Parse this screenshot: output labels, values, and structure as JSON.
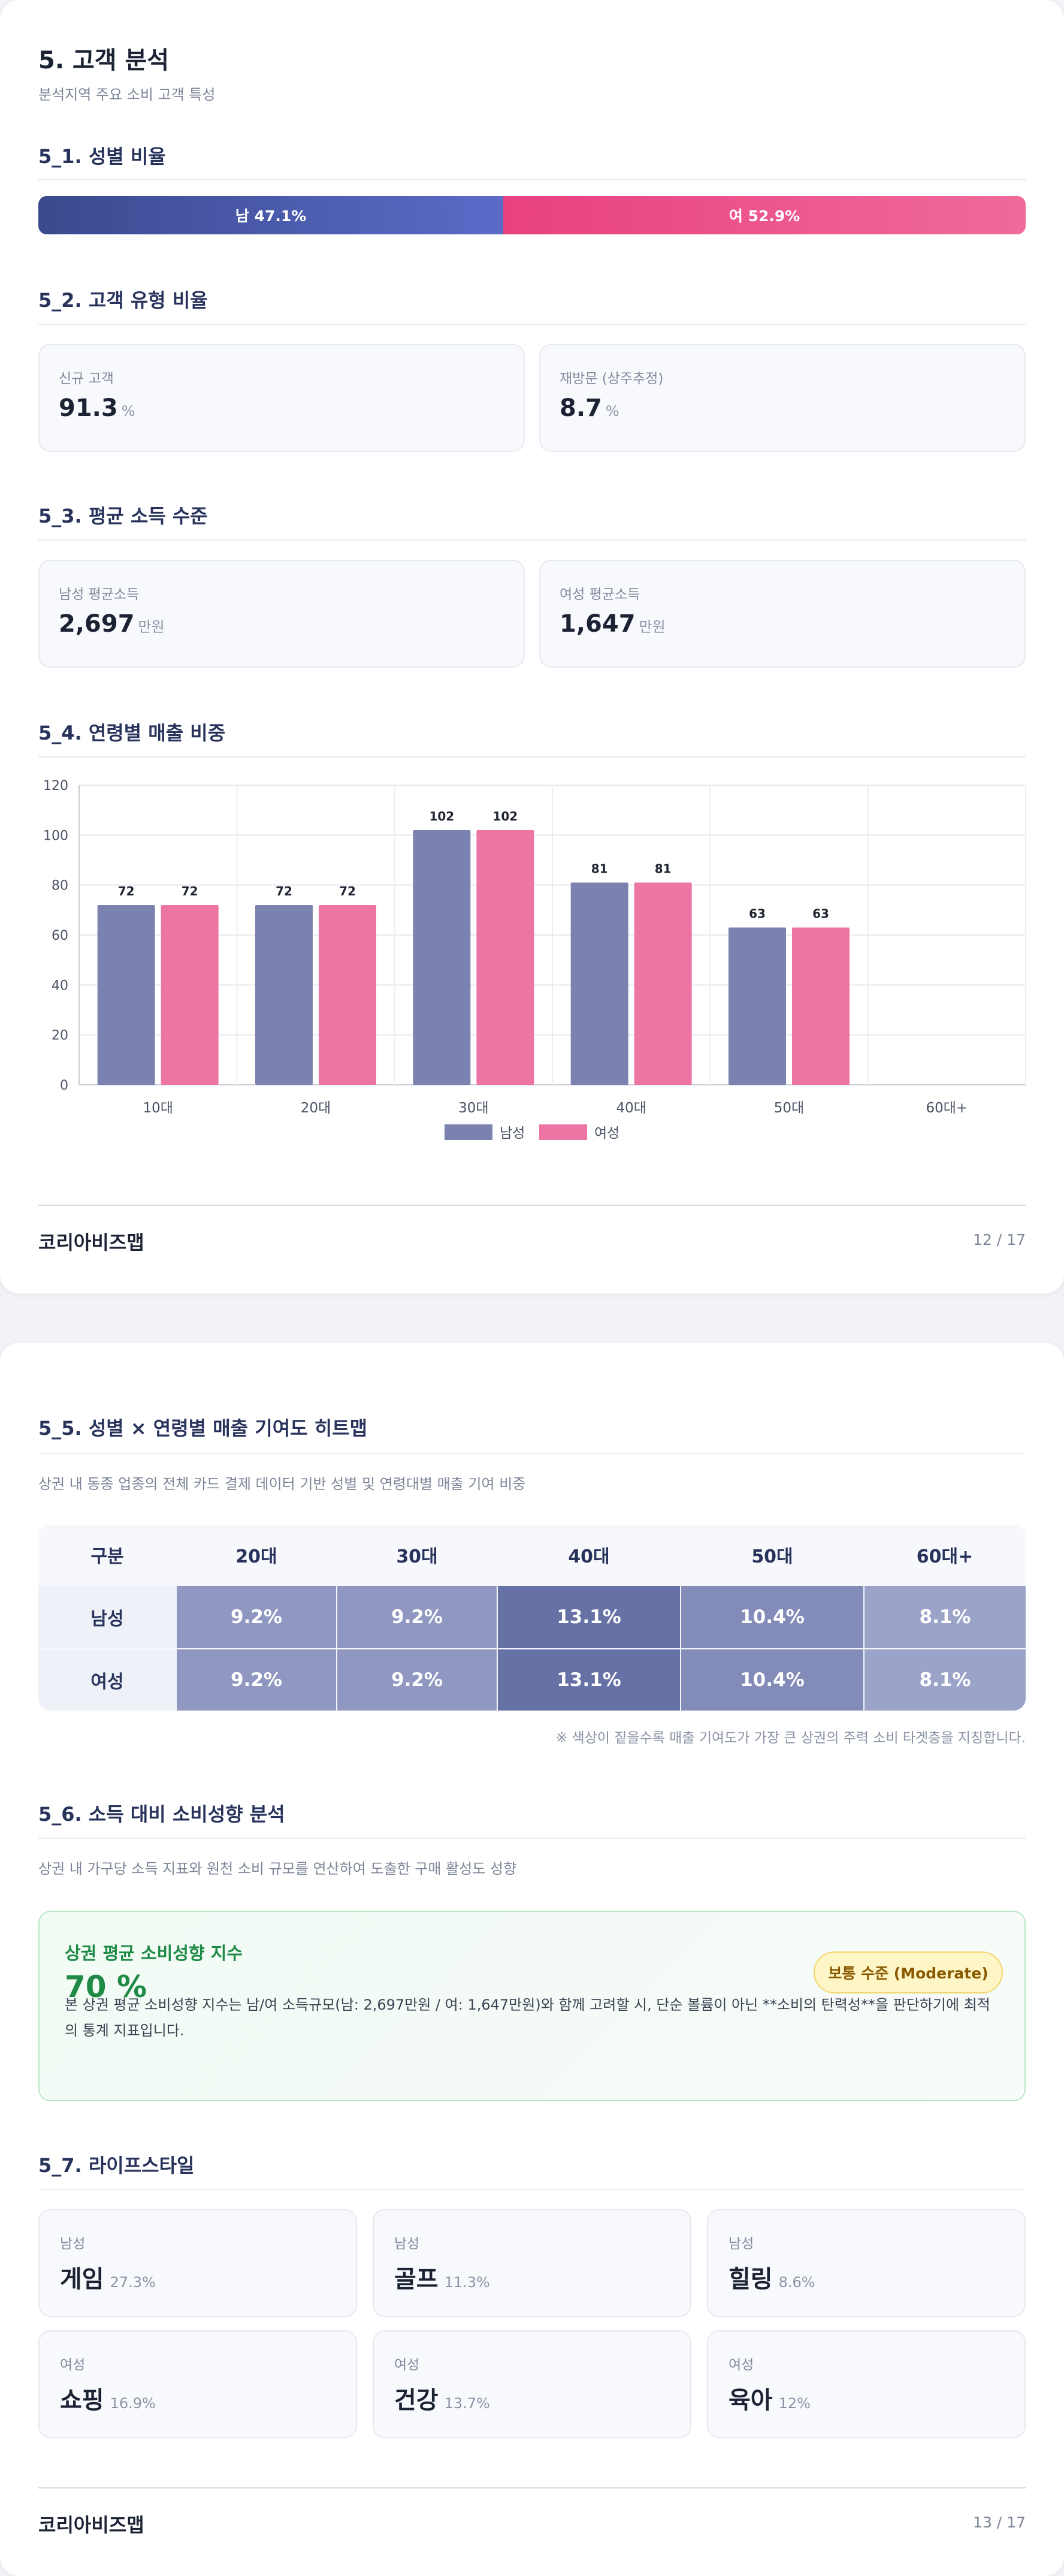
{
  "page1": {
    "section_title": "5. 고객 분석",
    "section_subtitle": "분석지역 주요 소비 고객 특성",
    "gender_ratio": {
      "title": "5_1. 성별 비율",
      "male_label": "남 47.1%",
      "female_label": "여 52.9%",
      "male_share": 47.1,
      "female_share": 52.9,
      "male_color": "#4a58a8",
      "female_color": "#ec5590"
    },
    "customer_type": {
      "title": "5_2. 고객 유형 비율",
      "cards": [
        {
          "label": "신규 고객",
          "value": "91.3",
          "unit": "%"
        },
        {
          "label": "재방문 (상주추정)",
          "value": "8.7",
          "unit": "%"
        }
      ]
    },
    "income": {
      "title": "5_3. 평균 소득 수준",
      "cards": [
        {
          "label": "남성 평균소득",
          "value": "2,697",
          "unit": "만원"
        },
        {
          "label": "여성 평균소득",
          "value": "1,647",
          "unit": "만원"
        }
      ]
    },
    "age_sales": {
      "title": "5_4. 연령별 매출 비중"
    },
    "footer": {
      "brand": "코리아비즈맵",
      "page": "12 / 17"
    }
  },
  "chart_data": {
    "type": "bar",
    "title": "",
    "xlabel": "",
    "ylabel": "",
    "categories": [
      "10대",
      "20대",
      "30대",
      "40대",
      "50대",
      "60대+"
    ],
    "series": [
      {
        "name": "남성",
        "values": [
          72,
          72,
          102,
          81,
          63,
          null
        ],
        "color": "#7b82af"
      },
      {
        "name": "여성",
        "values": [
          72,
          72,
          102,
          81,
          63,
          null
        ],
        "color": "#ec75a3"
      }
    ],
    "ylim": [
      0,
      120
    ],
    "yticks": [
      0,
      20,
      40,
      60,
      80,
      100,
      120
    ],
    "grid": true,
    "legend": "bottom"
  },
  "page2": {
    "heatmap": {
      "title": "5_5. 성별 × 연령별 매출 기여도 히트맵",
      "subtitle": "상권 내 동종 업종의 전체 카드 결제 데이터 기반 성별 및 연령대별 매출 기여 비중",
      "corner": "구분",
      "columns": [
        "20대",
        "30대",
        "40대",
        "50대",
        "60대+"
      ],
      "rows": [
        {
          "label": "남성",
          "cells": [
            "9.2%",
            "9.2%",
            "13.1%",
            "10.4%",
            "8.1%"
          ],
          "values": [
            9.2,
            9.2,
            13.1,
            10.4,
            8.1
          ]
        },
        {
          "label": "여성",
          "cells": [
            "9.2%",
            "9.2%",
            "13.1%",
            "10.4%",
            "8.1%"
          ],
          "values": [
            9.2,
            9.2,
            13.1,
            10.4,
            8.1
          ]
        }
      ],
      "note": "※ 색상이 짙을수록 매출 기여도가 가장 큰 상권의 주력 소비 타겟층을 지칭합니다."
    },
    "propensity": {
      "title": "5_6. 소득 대비 소비성향 분석",
      "subtitle": "상권 내 가구당 소득 지표와 원천 소비 규모를 연산하여 도출한 구매 활성도 성향",
      "box_title": "상권 평균 소비성향 지수",
      "value": "70 %",
      "badge": "보통 수준 (Moderate)",
      "description": "본 상권 평균 소비성향 지수는 남/여 소득규모(남: 2,697만원 / 여: 1,647만원)와 함께 고려할 시, 단순 볼륨이 아닌 **소비의 탄력성**을 판단하기에 최적의 통계 지표입니다."
    },
    "lifestyle": {
      "title": "5_7. 라이프스타일",
      "items": [
        {
          "gender": "남성",
          "name": "게임",
          "pct": "27.3%"
        },
        {
          "gender": "남성",
          "name": "골프",
          "pct": "11.3%"
        },
        {
          "gender": "남성",
          "name": "힐링",
          "pct": "8.6%"
        },
        {
          "gender": "여성",
          "name": "쇼핑",
          "pct": "16.9%"
        },
        {
          "gender": "여성",
          "name": "건강",
          "pct": "13.7%"
        },
        {
          "gender": "여성",
          "name": "육아",
          "pct": "12%"
        }
      ]
    },
    "footer": {
      "brand": "코리아비즈맵",
      "page": "13 / 17"
    }
  }
}
